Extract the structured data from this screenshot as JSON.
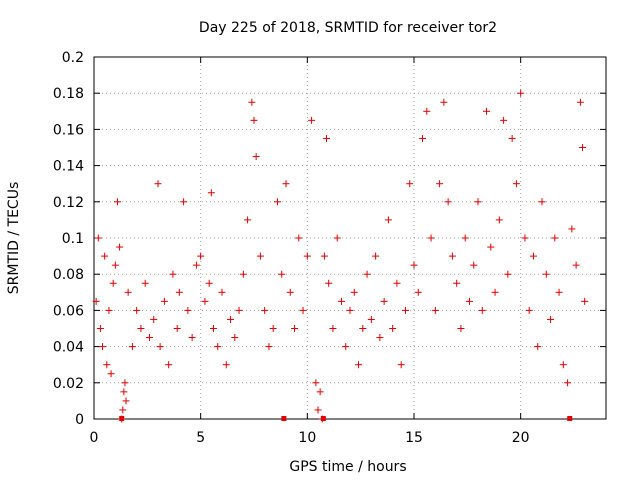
{
  "chart_data": {
    "type": "scatter",
    "title": "Day 225 of 2018, SRMTID for receiver tor2",
    "xlabel": "GPS time / hours",
    "ylabel": "SRMTID / TECUs",
    "xlim": [
      0,
      24
    ],
    "ylim": [
      0,
      0.2
    ],
    "xticks": [
      0,
      5,
      10,
      15,
      20
    ],
    "xtick_labels": [
      "0",
      "5",
      "10",
      "15",
      "20"
    ],
    "yticks": [
      0,
      0.02,
      0.04,
      0.06,
      0.08,
      0.1,
      0.12,
      0.14,
      0.16,
      0.18,
      0.2
    ],
    "ytick_labels": [
      "0",
      "0.02",
      "0.04",
      "0.06",
      "0.08",
      "0.1",
      "0.12",
      "0.14",
      "0.16",
      "0.18",
      "0.2"
    ],
    "grid": true,
    "marker": "+",
    "color": "#e00000",
    "series": [
      {
        "name": "tor2",
        "points": [
          [
            0.1,
            0.065
          ],
          [
            0.2,
            0.1
          ],
          [
            0.3,
            0.05
          ],
          [
            0.4,
            0.04
          ],
          [
            0.5,
            0.09
          ],
          [
            0.6,
            0.03
          ],
          [
            0.7,
            0.06
          ],
          [
            0.8,
            0.025
          ],
          [
            0.9,
            0.075
          ],
          [
            1.0,
            0.085
          ],
          [
            1.1,
            0.12
          ],
          [
            1.2,
            0.095
          ],
          [
            1.3,
            0.0
          ],
          [
            1.35,
            0.005
          ],
          [
            1.4,
            0.015
          ],
          [
            1.45,
            0.02
          ],
          [
            1.5,
            0.01
          ],
          [
            1.6,
            0.07
          ],
          [
            1.8,
            0.04
          ],
          [
            2.0,
            0.06
          ],
          [
            2.2,
            0.05
          ],
          [
            2.4,
            0.075
          ],
          [
            2.6,
            0.045
          ],
          [
            2.8,
            0.055
          ],
          [
            3.0,
            0.13
          ],
          [
            3.1,
            0.04
          ],
          [
            3.3,
            0.065
          ],
          [
            3.5,
            0.03
          ],
          [
            3.7,
            0.08
          ],
          [
            3.9,
            0.05
          ],
          [
            4.0,
            0.07
          ],
          [
            4.2,
            0.12
          ],
          [
            4.4,
            0.06
          ],
          [
            4.6,
            0.045
          ],
          [
            4.8,
            0.085
          ],
          [
            5.0,
            0.09
          ],
          [
            5.2,
            0.065
          ],
          [
            5.4,
            0.075
          ],
          [
            5.5,
            0.125
          ],
          [
            5.6,
            0.05
          ],
          [
            5.8,
            0.04
          ],
          [
            6.0,
            0.07
          ],
          [
            6.2,
            0.03
          ],
          [
            6.4,
            0.055
          ],
          [
            6.6,
            0.045
          ],
          [
            6.8,
            0.06
          ],
          [
            7.0,
            0.08
          ],
          [
            7.2,
            0.11
          ],
          [
            7.4,
            0.175
          ],
          [
            7.5,
            0.165
          ],
          [
            7.6,
            0.145
          ],
          [
            7.8,
            0.09
          ],
          [
            8.0,
            0.06
          ],
          [
            8.2,
            0.04
          ],
          [
            8.4,
            0.05
          ],
          [
            8.6,
            0.12
          ],
          [
            8.8,
            0.08
          ],
          [
            9.0,
            0.13
          ],
          [
            9.2,
            0.07
          ],
          [
            9.4,
            0.05
          ],
          [
            9.6,
            0.1
          ],
          [
            9.8,
            0.06
          ],
          [
            10.0,
            0.09
          ],
          [
            10.2,
            0.165
          ],
          [
            10.4,
            0.02
          ],
          [
            10.5,
            0.005
          ],
          [
            10.6,
            0.015
          ],
          [
            10.7,
            0.0
          ],
          [
            10.8,
            0.09
          ],
          [
            10.9,
            0.155
          ],
          [
            11.0,
            0.075
          ],
          [
            11.2,
            0.05
          ],
          [
            11.4,
            0.1
          ],
          [
            11.6,
            0.065
          ],
          [
            11.8,
            0.04
          ],
          [
            12.0,
            0.06
          ],
          [
            12.2,
            0.07
          ],
          [
            12.4,
            0.03
          ],
          [
            12.6,
            0.05
          ],
          [
            12.8,
            0.08
          ],
          [
            13.0,
            0.055
          ],
          [
            13.2,
            0.09
          ],
          [
            13.4,
            0.045
          ],
          [
            13.6,
            0.065
          ],
          [
            13.8,
            0.11
          ],
          [
            14.0,
            0.05
          ],
          [
            14.2,
            0.075
          ],
          [
            14.4,
            0.03
          ],
          [
            14.6,
            0.06
          ],
          [
            14.8,
            0.13
          ],
          [
            15.0,
            0.085
          ],
          [
            15.2,
            0.07
          ],
          [
            15.4,
            0.155
          ],
          [
            15.6,
            0.17
          ],
          [
            15.8,
            0.1
          ],
          [
            16.0,
            0.06
          ],
          [
            16.2,
            0.13
          ],
          [
            16.4,
            0.175
          ],
          [
            16.6,
            0.12
          ],
          [
            16.8,
            0.09
          ],
          [
            17.0,
            0.075
          ],
          [
            17.2,
            0.05
          ],
          [
            17.4,
            0.1
          ],
          [
            17.6,
            0.065
          ],
          [
            17.8,
            0.085
          ],
          [
            18.0,
            0.12
          ],
          [
            18.2,
            0.06
          ],
          [
            18.4,
            0.17
          ],
          [
            18.6,
            0.095
          ],
          [
            18.8,
            0.07
          ],
          [
            19.0,
            0.11
          ],
          [
            19.2,
            0.165
          ],
          [
            19.4,
            0.08
          ],
          [
            19.6,
            0.155
          ],
          [
            19.8,
            0.13
          ],
          [
            20.0,
            0.18
          ],
          [
            20.2,
            0.1
          ],
          [
            20.4,
            0.06
          ],
          [
            20.6,
            0.09
          ],
          [
            20.8,
            0.04
          ],
          [
            21.0,
            0.12
          ],
          [
            21.2,
            0.08
          ],
          [
            21.4,
            0.055
          ],
          [
            21.6,
            0.1
          ],
          [
            21.8,
            0.07
          ],
          [
            22.0,
            0.03
          ],
          [
            22.2,
            0.02
          ],
          [
            22.4,
            0.105
          ],
          [
            22.6,
            0.085
          ],
          [
            22.8,
            0.175
          ],
          [
            22.9,
            0.15
          ],
          [
            23.0,
            0.065
          ]
        ]
      }
    ],
    "zero_markers_x": [
      1.3,
      8.9,
      10.75,
      22.3
    ]
  }
}
